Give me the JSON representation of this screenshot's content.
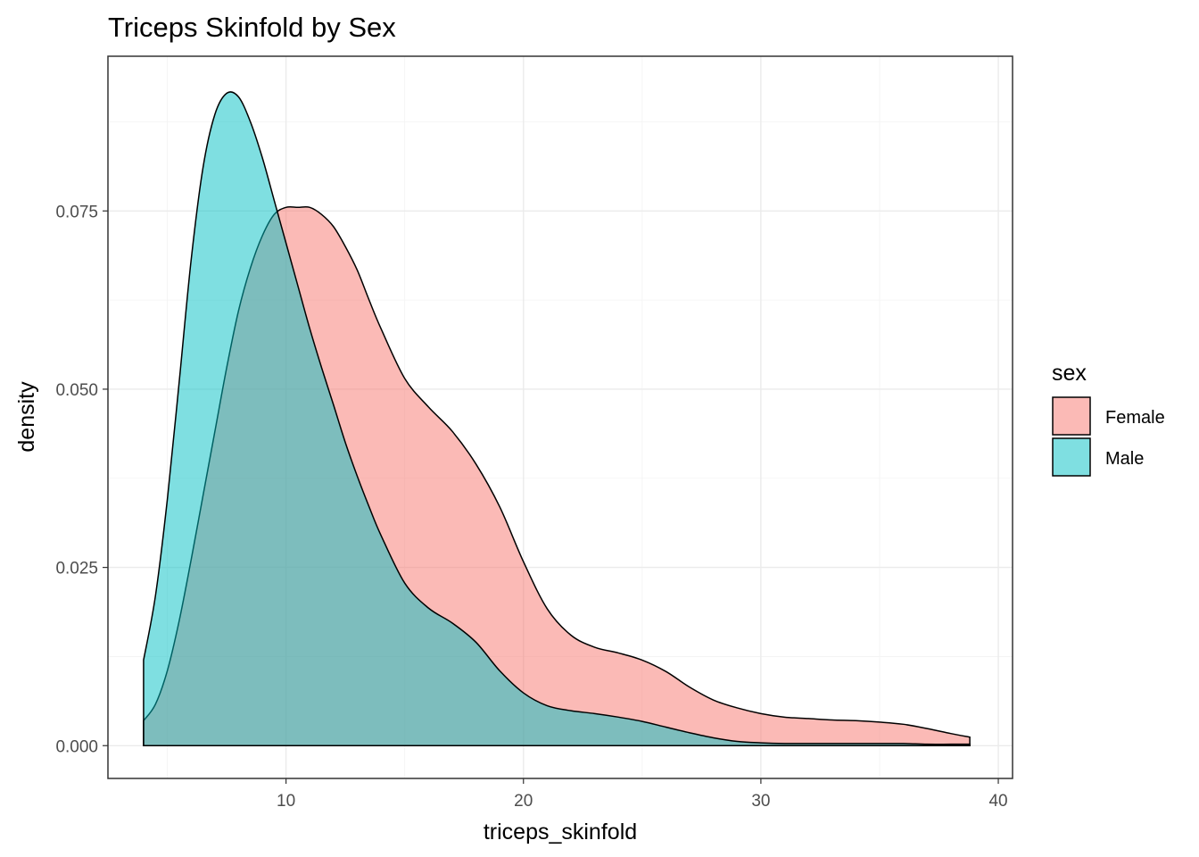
{
  "chart_data": {
    "type": "area",
    "title": "Triceps Skinfold by Sex",
    "xlabel": "triceps_skinfold",
    "ylabel": "density",
    "xlim": [
      2.5,
      40.6
    ],
    "ylim": [
      -0.0046,
      0.0967
    ],
    "x_ticks": [
      10,
      20,
      30,
      40
    ],
    "x_tick_labels": [
      "10",
      "20",
      "30",
      "40"
    ],
    "y_ticks": [
      0.0,
      0.025,
      0.05,
      0.075
    ],
    "y_tick_labels": [
      "0.000",
      "0.025",
      "0.050",
      "0.075"
    ],
    "x_minor_ticks": [
      5,
      15,
      25,
      35
    ],
    "y_minor_ticks": [
      0.0125,
      0.0375,
      0.0625,
      0.0875
    ],
    "grid": true,
    "legend": {
      "title": "sex",
      "position": "right"
    },
    "series": [
      {
        "name": "Female",
        "color": "#F8766D",
        "fill_opacity": 0.5,
        "x": [
          4.0,
          4.5,
          5.0,
          5.5,
          6.0,
          6.5,
          7.0,
          7.5,
          8.0,
          8.5,
          9.0,
          9.5,
          10.0,
          10.5,
          11.0,
          11.5,
          12.0,
          12.5,
          13.0,
          13.5,
          14.0,
          15.0,
          16.0,
          17.0,
          18.0,
          19.0,
          20.0,
          21.0,
          22.0,
          23.0,
          24.0,
          25.0,
          26.0,
          27.0,
          28.0,
          29.0,
          30.0,
          31.0,
          32.0,
          33.0,
          34.0,
          35.0,
          36.0,
          37.0,
          38.0,
          38.8
        ],
        "y": [
          0.0035,
          0.0058,
          0.0105,
          0.0175,
          0.026,
          0.035,
          0.044,
          0.053,
          0.061,
          0.067,
          0.0715,
          0.0745,
          0.0755,
          0.0755,
          0.0755,
          0.0745,
          0.0728,
          0.07,
          0.0667,
          0.0625,
          0.0585,
          0.0515,
          0.0475,
          0.0441,
          0.0395,
          0.0335,
          0.0258,
          0.0192,
          0.0155,
          0.0138,
          0.013,
          0.012,
          0.0104,
          0.0082,
          0.0064,
          0.0053,
          0.0045,
          0.004,
          0.0038,
          0.0036,
          0.0035,
          0.0033,
          0.003,
          0.0024,
          0.0017,
          0.0012
        ]
      },
      {
        "name": "Male",
        "color": "#00BFC4",
        "fill_opacity": 0.5,
        "x": [
          4.0,
          4.5,
          5.0,
          5.5,
          6.0,
          6.5,
          7.0,
          7.5,
          8.0,
          8.5,
          9.0,
          9.5,
          10.0,
          10.5,
          11.0,
          11.5,
          12.0,
          12.5,
          13.0,
          13.5,
          14.0,
          15.0,
          16.0,
          17.0,
          18.0,
          19.0,
          20.0,
          21.0,
          22.0,
          23.0,
          24.0,
          25.0,
          26.0,
          27.0,
          28.0,
          29.0,
          30.0,
          31.0,
          32.0,
          33.0,
          34.0,
          35.0,
          36.0,
          37.0,
          38.0,
          38.8
        ],
        "y": [
          0.012,
          0.021,
          0.0345,
          0.051,
          0.068,
          0.081,
          0.0885,
          0.0915,
          0.091,
          0.0875,
          0.0825,
          0.0765,
          0.0705,
          0.0645,
          0.0585,
          0.053,
          0.0478,
          0.0425,
          0.0378,
          0.0335,
          0.0295,
          0.0228,
          0.0193,
          0.0172,
          0.0145,
          0.0105,
          0.0074,
          0.0056,
          0.0049,
          0.0045,
          0.004,
          0.0034,
          0.0026,
          0.0018,
          0.0011,
          0.0006,
          0.0004,
          0.0003,
          0.0003,
          0.0003,
          0.0003,
          0.0003,
          0.0003,
          0.0002,
          0.0002,
          0.0002
        ]
      }
    ]
  }
}
